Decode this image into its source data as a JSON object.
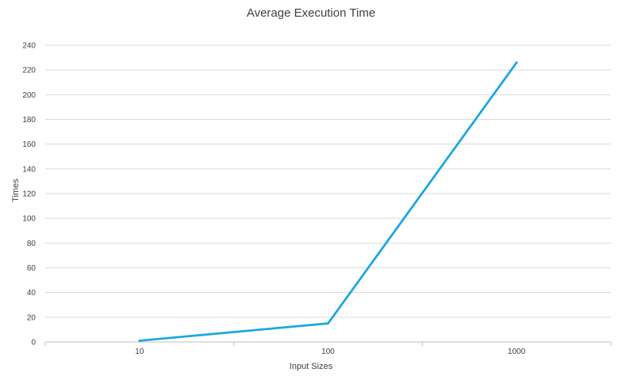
{
  "chart_data": {
    "type": "line",
    "title": "Average Execution Time",
    "xlabel": "Input Sizes",
    "ylabel": "Times",
    "categories": [
      "10",
      "100",
      "1000"
    ],
    "series": [
      {
        "values": [
          1,
          15,
          226
        ],
        "color": "#1aa7e1"
      }
    ],
    "ylim": [
      0,
      240
    ],
    "yticks": [
      0,
      20,
      40,
      60,
      80,
      100,
      120,
      140,
      160,
      180,
      200,
      220,
      240
    ],
    "grid": true,
    "gridColor": "#d9d9d9"
  }
}
